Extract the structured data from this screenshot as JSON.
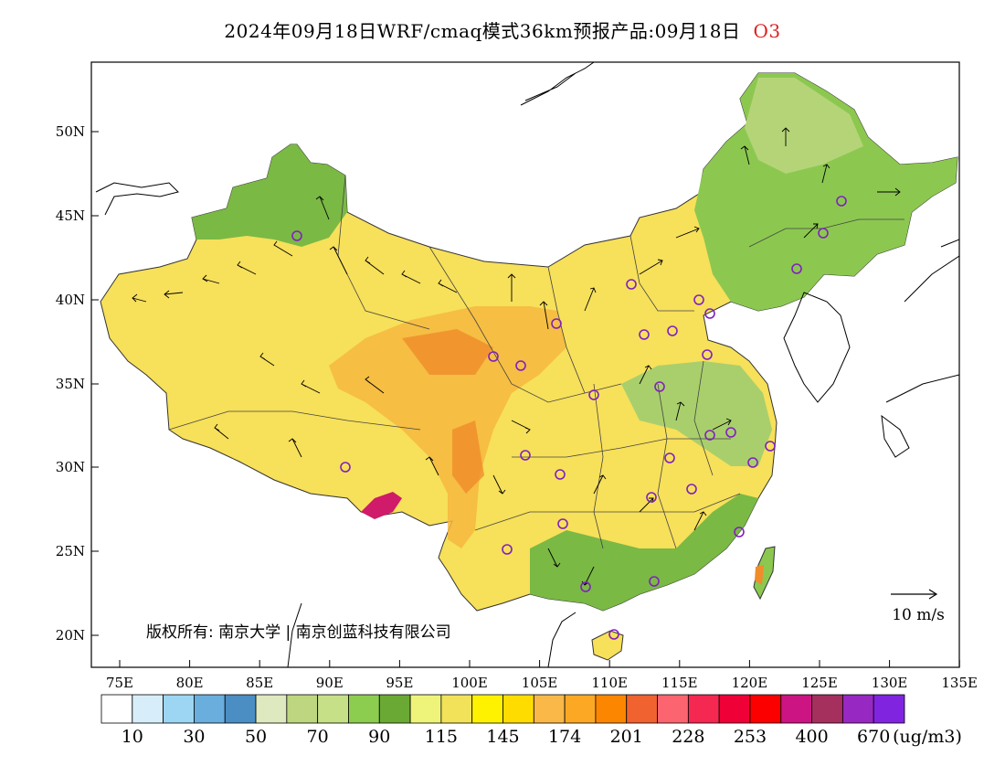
{
  "title": {
    "main": "2024年09月18日WRF/cmaq模式36km预报产品:09月18日",
    "variable": "O3"
  },
  "map": {
    "lat_ticks": [
      "50N",
      "45N",
      "40N",
      "35N",
      "30N",
      "25N",
      "20N"
    ],
    "lon_ticks": [
      "75E",
      "80E",
      "85E",
      "90E",
      "95E",
      "100E",
      "105E",
      "110E",
      "115E",
      "120E",
      "125E",
      "130E",
      "135E"
    ],
    "copyright": "版权所有: 南京大学 | 南京创蓝科技有限公司",
    "wind_scale_label": "10 m/s"
  },
  "colorbar": {
    "colors": [
      "#ffffff",
      "#d7eefa",
      "#9dd6f2",
      "#6aaede",
      "#4a8ec4",
      "#dfe9c0",
      "#bed67f",
      "#c6e088",
      "#8ccc4f",
      "#6aaa34",
      "#eef47a",
      "#f2e25a",
      "#fff200",
      "#ffdc00",
      "#f9b847",
      "#fca824",
      "#fd8600",
      "#f06230",
      "#fc6470",
      "#f42850",
      "#ef0036",
      "#fc0000",
      "#cc1482",
      "#a5305e",
      "#9828c2",
      "#8024e0"
    ],
    "labels": [
      "10",
      "30",
      "50",
      "70",
      "90",
      "115",
      "145",
      "174",
      "201",
      "228",
      "253",
      "400",
      "670"
    ],
    "unit": "(ug/m3)"
  }
}
